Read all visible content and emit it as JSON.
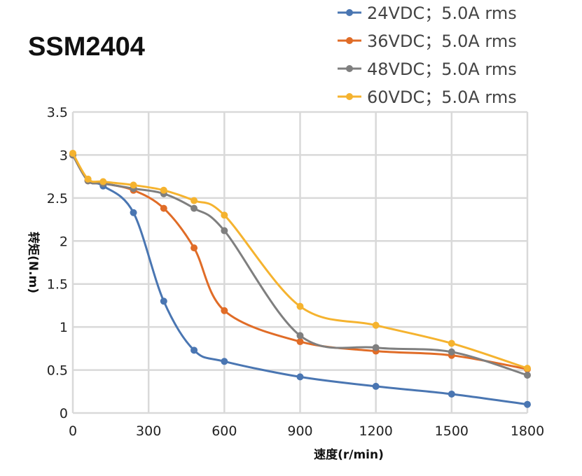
{
  "chart_data": {
    "type": "line",
    "title": "SSM2404",
    "xlabel": "速度(r/min)",
    "ylabel": "转矩(N.m)",
    "xlim": [
      0,
      1800
    ],
    "ylim": [
      0,
      3.5
    ],
    "xticks": [
      0,
      300,
      600,
      900,
      1200,
      1500,
      1800
    ],
    "yticks": [
      "0",
      "0.5",
      "1",
      "1.5",
      "2",
      "2.5",
      "3",
      "3.5"
    ],
    "grid": true,
    "legend_position": "top-right",
    "smooth": true,
    "x": [
      0,
      60,
      120,
      240,
      360,
      480,
      600,
      900,
      1200,
      1500,
      1800
    ],
    "series": [
      {
        "name": "24VDC；5.0A rms",
        "color": "#4a76b2",
        "values": [
          3.0,
          2.7,
          2.64,
          2.33,
          1.3,
          0.73,
          0.6,
          0.42,
          0.31,
          0.22,
          0.1
        ]
      },
      {
        "name": "36VDC；5.0A rms",
        "color": "#e06c27",
        "values": [
          3.0,
          2.7,
          2.67,
          2.59,
          2.38,
          1.92,
          1.19,
          0.83,
          0.72,
          0.67,
          0.51
        ]
      },
      {
        "name": "48VDC；5.0A rms",
        "color": "#7f7f7f",
        "values": [
          3.0,
          2.7,
          2.67,
          2.61,
          2.55,
          2.38,
          2.12,
          0.9,
          0.76,
          0.71,
          0.44
        ]
      },
      {
        "name": "60VDC；5.0A rms",
        "color": "#f5b32f",
        "values": [
          3.02,
          2.72,
          2.69,
          2.65,
          2.59,
          2.47,
          2.3,
          1.24,
          1.02,
          0.81,
          0.52
        ]
      }
    ]
  }
}
